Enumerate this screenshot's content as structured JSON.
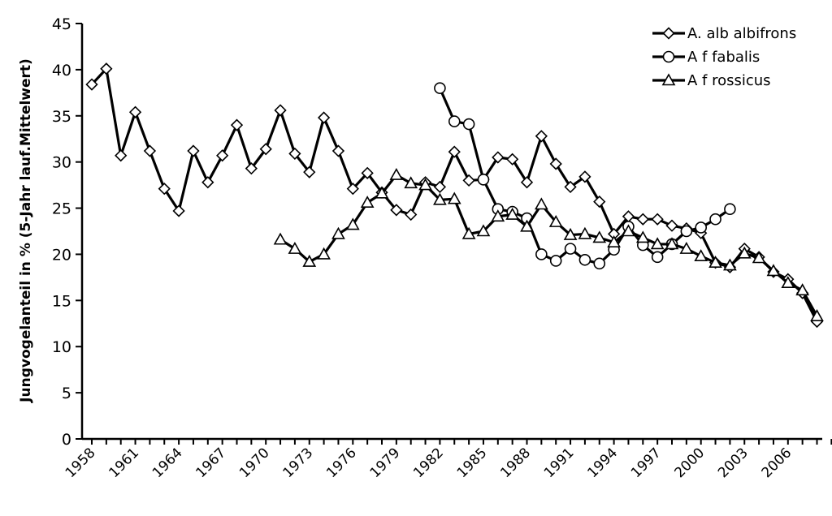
{
  "chart_data": {
    "type": "line",
    "ylabel": "Jungvogelanteil in % (5-Jahr lauf.Mittelwert)",
    "ylim": [
      0,
      45
    ],
    "yticks": [
      0,
      5,
      10,
      15,
      20,
      25,
      30,
      35,
      40,
      45
    ],
    "xlim": [
      1958,
      2009
    ],
    "xticks": [
      1958,
      1961,
      1964,
      1967,
      1970,
      1973,
      1976,
      1979,
      1982,
      1985,
      1988,
      1991,
      1994,
      1997,
      2000,
      2003,
      2006
    ],
    "grid": false,
    "legend_position": "top-right",
    "series": [
      {
        "name": "A. alb albifrons",
        "marker": "diamond",
        "points": [
          [
            1958,
            38.4
          ],
          [
            1959,
            40.1
          ],
          [
            1960,
            30.7
          ],
          [
            1961,
            35.4
          ],
          [
            1962,
            31.2
          ],
          [
            1963,
            27.1
          ],
          [
            1964,
            24.7
          ],
          [
            1965,
            31.2
          ],
          [
            1966,
            27.8
          ],
          [
            1967,
            30.7
          ],
          [
            1968,
            34.0
          ],
          [
            1969,
            29.3
          ],
          [
            1970,
            31.4
          ],
          [
            1971,
            35.6
          ],
          [
            1972,
            30.9
          ],
          [
            1973,
            28.9
          ],
          [
            1974,
            34.8
          ],
          [
            1975,
            31.2
          ],
          [
            1976,
            27.1
          ],
          [
            1977,
            28.8
          ],
          [
            1978,
            26.7
          ],
          [
            1979,
            24.8
          ],
          [
            1980,
            24.3
          ],
          [
            1981,
            27.8
          ],
          [
            1982,
            27.3
          ],
          [
            1983,
            31.1
          ],
          [
            1984,
            28.0
          ],
          [
            1985,
            28.1
          ],
          [
            1986,
            30.5
          ],
          [
            1987,
            30.3
          ],
          [
            1988,
            27.8
          ],
          [
            1989,
            32.8
          ],
          [
            1990,
            29.8
          ],
          [
            1991,
            27.3
          ],
          [
            1992,
            28.4
          ],
          [
            1993,
            25.7
          ],
          [
            1994,
            22.2
          ],
          [
            1995,
            24.1
          ],
          [
            1996,
            23.8
          ],
          [
            1997,
            23.8
          ],
          [
            1998,
            23.1
          ],
          [
            1999,
            22.8
          ],
          [
            2000,
            22.3
          ],
          [
            2001,
            19.1
          ],
          [
            2002,
            18.6
          ],
          [
            2003,
            20.6
          ],
          [
            2004,
            19.7
          ],
          [
            2005,
            18.1
          ],
          [
            2006,
            17.3
          ],
          [
            2007,
            15.8
          ],
          [
            2008,
            12.7
          ]
        ]
      },
      {
        "name": "A f fabalis",
        "marker": "circle",
        "points": [
          [
            1982,
            38.0
          ],
          [
            1983,
            34.4
          ],
          [
            1984,
            34.1
          ],
          [
            1985,
            28.1
          ],
          [
            1986,
            24.9
          ],
          [
            1987,
            24.6
          ],
          [
            1988,
            23.9
          ],
          [
            1989,
            20.0
          ],
          [
            1990,
            19.3
          ],
          [
            1991,
            20.6
          ],
          [
            1992,
            19.4
          ],
          [
            1993,
            19.0
          ],
          [
            1994,
            20.5
          ],
          [
            1995,
            23.0
          ],
          [
            1996,
            21.0
          ],
          [
            1997,
            19.7
          ],
          [
            1998,
            21.1
          ],
          [
            1999,
            22.5
          ],
          [
            2000,
            22.9
          ],
          [
            2001,
            23.8
          ],
          [
            2002,
            24.9
          ]
        ]
      },
      {
        "name": "A f rossicus",
        "marker": "triangle",
        "points": [
          [
            1971,
            21.6
          ],
          [
            1972,
            20.6
          ],
          [
            1973,
            19.2
          ],
          [
            1974,
            20.0
          ],
          [
            1975,
            22.2
          ],
          [
            1976,
            23.2
          ],
          [
            1977,
            25.6
          ],
          [
            1978,
            26.6
          ],
          [
            1979,
            28.6
          ],
          [
            1980,
            27.7
          ],
          [
            1981,
            27.5
          ],
          [
            1982,
            25.9
          ],
          [
            1983,
            26.0
          ],
          [
            1984,
            22.2
          ],
          [
            1985,
            22.5
          ],
          [
            1986,
            24.1
          ],
          [
            1987,
            24.3
          ],
          [
            1988,
            23.0
          ],
          [
            1989,
            25.4
          ],
          [
            1990,
            23.5
          ],
          [
            1991,
            22.1
          ],
          [
            1992,
            22.2
          ],
          [
            1993,
            21.8
          ],
          [
            1994,
            21.3
          ],
          [
            1995,
            22.5
          ],
          [
            1996,
            21.8
          ],
          [
            1997,
            21.1
          ],
          [
            1998,
            21.1
          ],
          [
            1999,
            20.6
          ],
          [
            2000,
            19.8
          ],
          [
            2001,
            19.1
          ],
          [
            2002,
            18.8
          ],
          [
            2003,
            20.1
          ],
          [
            2004,
            19.6
          ],
          [
            2005,
            18.2
          ],
          [
            2006,
            16.9
          ],
          [
            2007,
            16.1
          ],
          [
            2008,
            13.3
          ]
        ]
      }
    ]
  }
}
